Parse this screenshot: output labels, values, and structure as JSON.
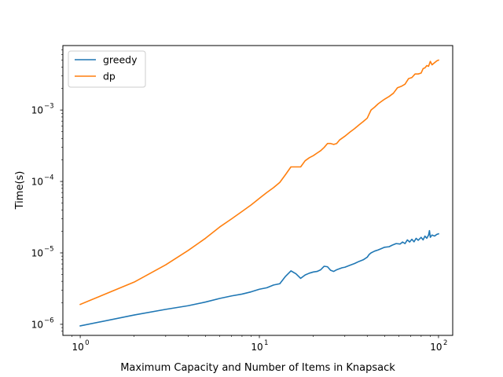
{
  "chart_data": {
    "type": "line",
    "title": "",
    "xlabel": "Maximum Capacity and Number of Items in Knapsack",
    "ylabel": "Time(s)",
    "xscale": "log",
    "yscale": "log",
    "xlim": [
      0.8,
      120
    ],
    "ylim": [
      7e-07,
      0.008
    ],
    "grid": false,
    "legend_position": "upper-left",
    "x_ticks": [
      {
        "value": 1,
        "base": "10",
        "exp": "0"
      },
      {
        "value": 10,
        "base": "10",
        "exp": "1"
      },
      {
        "value": 100,
        "base": "10",
        "exp": "2"
      }
    ],
    "y_ticks": [
      {
        "value": 1e-06,
        "base": "10",
        "exp": "−6"
      },
      {
        "value": 1e-05,
        "base": "10",
        "exp": "−5"
      },
      {
        "value": 0.0001,
        "base": "10",
        "exp": "−4"
      },
      {
        "value": 0.001,
        "base": "10",
        "exp": "−3"
      }
    ],
    "series": [
      {
        "name": "greedy",
        "color": "#1f77b4",
        "points": [
          [
            1,
            9.5e-07
          ],
          [
            2,
            1.35e-06
          ],
          [
            3,
            1.62e-06
          ],
          [
            4,
            1.82e-06
          ],
          [
            5,
            2.05e-06
          ],
          [
            6,
            2.3e-06
          ],
          [
            7,
            2.5e-06
          ],
          [
            8,
            2.65e-06
          ],
          [
            9,
            2.85e-06
          ],
          [
            10,
            3.1e-06
          ],
          [
            11,
            3.25e-06
          ],
          [
            12,
            3.55e-06
          ],
          [
            13,
            3.7e-06
          ],
          [
            14,
            4.7e-06
          ],
          [
            15,
            5.6e-06
          ],
          [
            16,
            5.1e-06
          ],
          [
            17,
            4.4e-06
          ],
          [
            18,
            4.9e-06
          ],
          [
            19,
            5.2e-06
          ],
          [
            20,
            5.4e-06
          ],
          [
            21,
            5.5e-06
          ],
          [
            22,
            5.8e-06
          ],
          [
            23,
            6.5e-06
          ],
          [
            24,
            6.4e-06
          ],
          [
            25,
            5.7e-06
          ],
          [
            26,
            5.5e-06
          ],
          [
            27,
            5.8e-06
          ],
          [
            28,
            6e-06
          ],
          [
            29,
            6.2e-06
          ],
          [
            30,
            6.3e-06
          ],
          [
            32,
            6.7e-06
          ],
          [
            34,
            7.1e-06
          ],
          [
            36,
            7.6e-06
          ],
          [
            38,
            8e-06
          ],
          [
            40,
            8.7e-06
          ],
          [
            41,
            9.5e-06
          ],
          [
            42,
            1e-05
          ],
          [
            44,
            1.06e-05
          ],
          [
            46,
            1.1e-05
          ],
          [
            48,
            1.15e-05
          ],
          [
            50,
            1.2e-05
          ],
          [
            53,
            1.22e-05
          ],
          [
            55,
            1.28e-05
          ],
          [
            58,
            1.35e-05
          ],
          [
            61,
            1.33e-05
          ],
          [
            63,
            1.42e-05
          ],
          [
            65,
            1.35e-05
          ],
          [
            67,
            1.52e-05
          ],
          [
            69,
            1.42e-05
          ],
          [
            71,
            1.55e-05
          ],
          [
            73,
            1.43e-05
          ],
          [
            75,
            1.6e-05
          ],
          [
            77,
            1.5e-05
          ],
          [
            80,
            1.65e-05
          ],
          [
            82,
            1.52e-05
          ],
          [
            84,
            1.72e-05
          ],
          [
            86,
            1.6e-05
          ],
          [
            88,
            1.78e-05
          ],
          [
            89,
            2.05e-05
          ],
          [
            90,
            1.65e-05
          ],
          [
            92,
            1.78e-05
          ],
          [
            95,
            1.72e-05
          ],
          [
            98,
            1.82e-05
          ],
          [
            100,
            1.85e-05
          ]
        ]
      },
      {
        "name": "dp",
        "color": "#ff7f0e",
        "points": [
          [
            1,
            1.9e-06
          ],
          [
            2,
            3.9e-06
          ],
          [
            3,
            6.8e-06
          ],
          [
            4,
            1.08e-05
          ],
          [
            5,
            1.6e-05
          ],
          [
            6,
            2.3e-05
          ],
          [
            7,
            3e-05
          ],
          [
            8,
            3.8e-05
          ],
          [
            9,
            4.7e-05
          ],
          [
            10,
            5.8e-05
          ],
          [
            11,
            7e-05
          ],
          [
            12,
            8.2e-05
          ],
          [
            13,
            9.7e-05
          ],
          [
            14,
            0.000125
          ],
          [
            15,
            0.00016
          ],
          [
            16,
            0.00016
          ],
          [
            17,
            0.00016
          ],
          [
            18,
            0.000195
          ],
          [
            19,
            0.000215
          ],
          [
            20,
            0.00023
          ],
          [
            21,
            0.00025
          ],
          [
            22,
            0.00027
          ],
          [
            23,
            0.0003
          ],
          [
            24,
            0.00034
          ],
          [
            25,
            0.00034
          ],
          [
            26,
            0.00033
          ],
          [
            27,
            0.00034
          ],
          [
            28,
            0.00038
          ],
          [
            30,
            0.00043
          ],
          [
            32,
            0.00049
          ],
          [
            34,
            0.00055
          ],
          [
            36,
            0.00062
          ],
          [
            38,
            0.00069
          ],
          [
            40,
            0.00077
          ],
          [
            42,
            0.001
          ],
          [
            44,
            0.0011
          ],
          [
            46,
            0.00122
          ],
          [
            48,
            0.00132
          ],
          [
            50,
            0.00142
          ],
          [
            53,
            0.00155
          ],
          [
            56,
            0.00172
          ],
          [
            59,
            0.00205
          ],
          [
            62,
            0.00215
          ],
          [
            65,
            0.0023
          ],
          [
            68,
            0.00275
          ],
          [
            71,
            0.00285
          ],
          [
            74,
            0.0032
          ],
          [
            77,
            0.0032
          ],
          [
            80,
            0.0033
          ],
          [
            82,
            0.0038
          ],
          [
            84,
            0.0039
          ],
          [
            86,
            0.0042
          ],
          [
            88,
            0.0041
          ],
          [
            90,
            0.0048
          ],
          [
            92,
            0.0043
          ],
          [
            95,
            0.0046
          ],
          [
            98,
            0.0049
          ],
          [
            100,
            0.005
          ]
        ]
      }
    ]
  }
}
